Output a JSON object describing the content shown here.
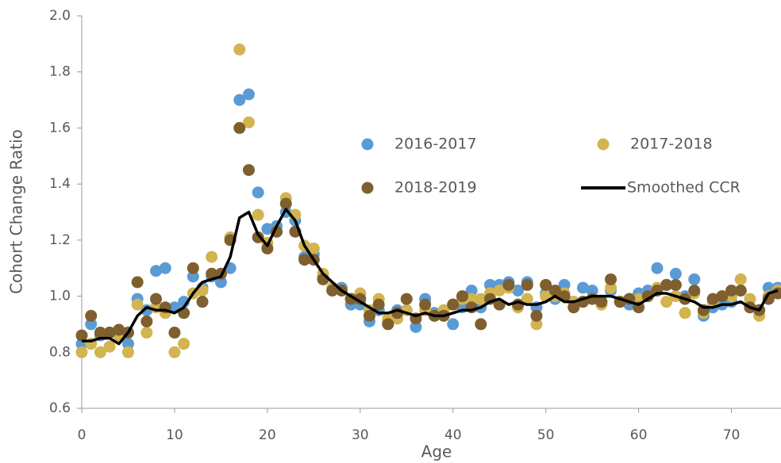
{
  "chart_data": {
    "type": "scatter",
    "x_label": "Age",
    "y_label": "Cohort Change Ratio",
    "x": [
      0,
      1,
      2,
      3,
      4,
      5,
      6,
      7,
      8,
      9,
      10,
      11,
      12,
      13,
      14,
      15,
      16,
      17,
      18,
      19,
      20,
      21,
      22,
      23,
      24,
      25,
      26,
      27,
      28,
      29,
      30,
      31,
      32,
      33,
      34,
      35,
      36,
      37,
      38,
      39,
      40,
      41,
      42,
      43,
      44,
      45,
      46,
      47,
      48,
      49,
      50,
      51,
      52,
      53,
      54,
      55,
      56,
      57,
      58,
      59,
      60,
      61,
      62,
      63,
      64,
      65,
      66,
      67,
      68,
      69,
      70,
      71,
      72,
      73,
      74,
      75
    ],
    "xlim": [
      0,
      75
    ],
    "xticks": [
      0,
      10,
      20,
      30,
      40,
      50,
      60,
      70
    ],
    "ylim": [
      0.6,
      2.0
    ],
    "yticks": [
      0.6,
      0.8,
      {
        "value": 1.0,
        "label": "1.0"
      },
      1.2,
      1.4,
      1.6,
      1.8,
      {
        "value": 2.0,
        "label": "2.0"
      }
    ],
    "legend": "upper right",
    "grid": false,
    "series": [
      {
        "name": "2016-2017",
        "color": "#5b9bd5",
        "values": [
          0.83,
          0.9,
          0.86,
          0.87,
          0.88,
          0.83,
          0.99,
          0.95,
          1.09,
          1.1,
          0.96,
          0.98,
          1.07,
          1.03,
          1.07,
          1.05,
          1.1,
          1.7,
          1.72,
          1.37,
          1.24,
          1.25,
          1.3,
          1.27,
          1.14,
          1.15,
          1.07,
          1.02,
          1.03,
          0.97,
          0.97,
          0.91,
          0.95,
          0.91,
          0.95,
          0.95,
          0.89,
          0.99,
          0.94,
          0.94,
          0.9,
          0.96,
          1.02,
          0.96,
          1.04,
          1.04,
          1.05,
          1.02,
          1.05,
          0.96,
          1.01,
          0.99,
          1.04,
          0.98,
          1.03,
          1.02,
          0.98,
          1.02,
          0.98,
          0.97,
          1.01,
          1.02,
          1.1,
          1.04,
          1.08,
          1.0,
          1.06,
          0.93,
          0.96,
          0.97,
          0.98,
          1.02,
          0.96,
          0.95,
          1.03,
          1.03
        ]
      },
      {
        "name": "2017-2018",
        "color": "#d2b450",
        "values": [
          0.8,
          0.83,
          0.8,
          0.82,
          0.86,
          0.8,
          0.97,
          0.87,
          0.96,
          0.94,
          0.8,
          0.83,
          1.01,
          1.02,
          1.14,
          1.08,
          1.21,
          1.88,
          1.62,
          1.29,
          1.19,
          1.23,
          1.35,
          1.29,
          1.18,
          1.17,
          1.08,
          1.03,
          1.02,
          0.99,
          1.01,
          0.95,
          0.99,
          0.92,
          0.92,
          0.95,
          0.92,
          0.95,
          0.93,
          0.95,
          0.97,
          0.99,
          0.99,
          0.99,
          1.01,
          1.02,
          1.03,
          0.96,
          0.99,
          0.9,
          1.0,
          1.0,
          1.01,
          0.98,
          0.98,
          0.99,
          0.97,
          1.03,
          0.98,
          0.99,
          0.99,
          1.0,
          1.03,
          0.98,
          1.0,
          0.94,
          1.01,
          0.94,
          0.98,
          1.0,
          1.0,
          1.06,
          0.99,
          0.93,
          1.0,
          1.02
        ]
      },
      {
        "name": "2018-2019",
        "color": "#7f5f2e",
        "values": [
          0.86,
          0.93,
          0.87,
          0.87,
          0.88,
          0.87,
          1.05,
          0.91,
          0.99,
          0.96,
          0.87,
          0.94,
          1.1,
          0.98,
          1.08,
          1.08,
          1.2,
          1.6,
          1.45,
          1.21,
          1.17,
          1.23,
          1.33,
          1.23,
          1.13,
          1.13,
          1.06,
          1.02,
          1.02,
          0.99,
          0.99,
          0.93,
          0.97,
          0.9,
          0.94,
          0.99,
          0.92,
          0.97,
          0.93,
          0.93,
          0.97,
          1.0,
          0.96,
          0.9,
          0.99,
          0.97,
          1.04,
          0.97,
          1.04,
          0.93,
          1.04,
          1.02,
          1.0,
          0.96,
          0.98,
          0.99,
          0.98,
          1.06,
          0.98,
          0.99,
          0.96,
          1.0,
          1.02,
          1.04,
          1.04,
          0.99,
          1.02,
          0.95,
          0.99,
          1.0,
          1.02,
          1.02,
          0.96,
          0.95,
          0.99,
          1.01
        ]
      },
      {
        "name": "Smoothed CCR",
        "color": "#000000",
        "type": "line",
        "values": [
          0.84,
          0.84,
          0.85,
          0.85,
          0.83,
          0.87,
          0.93,
          0.96,
          0.95,
          0.95,
          0.94,
          0.96,
          1.01,
          1.05,
          1.06,
          1.07,
          1.14,
          1.28,
          1.3,
          1.22,
          1.18,
          1.25,
          1.31,
          1.27,
          1.18,
          1.13,
          1.08,
          1.05,
          1.02,
          1.0,
          0.98,
          0.96,
          0.94,
          0.94,
          0.95,
          0.94,
          0.93,
          0.94,
          0.93,
          0.93,
          0.94,
          0.95,
          0.95,
          0.96,
          0.98,
          0.99,
          0.97,
          0.98,
          0.97,
          0.97,
          0.98,
          1.0,
          0.98,
          0.98,
          0.99,
          1.0,
          1.0,
          1.0,
          0.99,
          0.98,
          0.97,
          0.99,
          1.01,
          1.01,
          1.0,
          0.99,
          0.98,
          0.96,
          0.96,
          0.97,
          0.97,
          0.98,
          0.96,
          0.95,
          1.01,
          1.02
        ]
      }
    ]
  }
}
